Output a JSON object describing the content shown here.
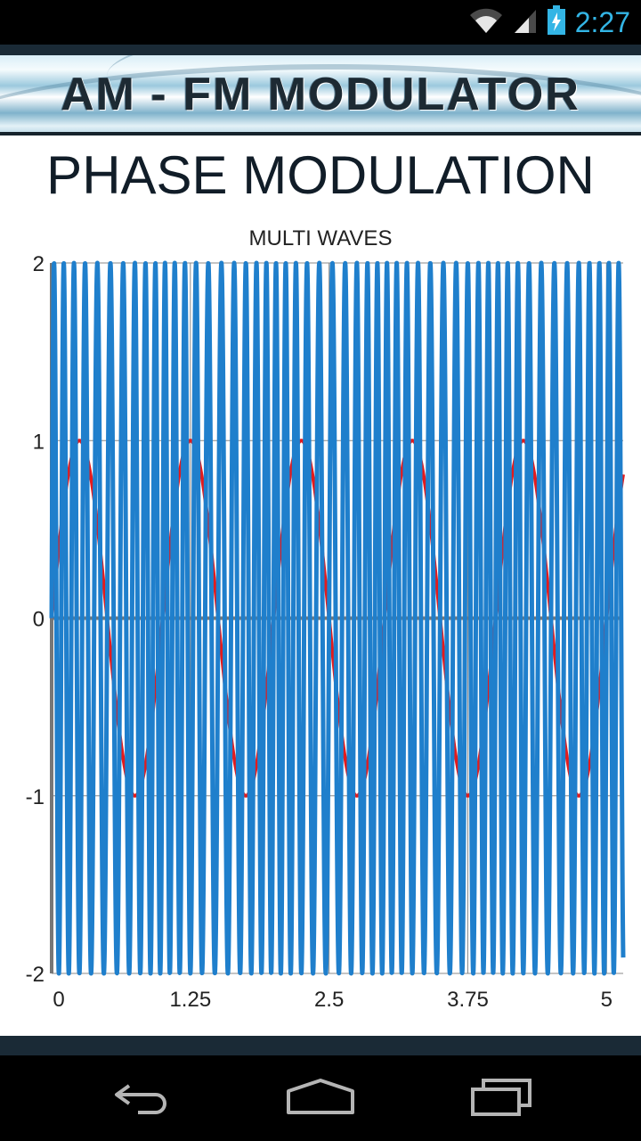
{
  "status_bar": {
    "time": "2:27",
    "icons": [
      "wifi-icon",
      "signal-icon",
      "battery-charging-icon"
    ]
  },
  "banner": {
    "title": "AM - FM MODULATOR"
  },
  "page": {
    "title": "PHASE MODULATION"
  },
  "chart_data": {
    "type": "line",
    "title": "MULTI WAVES",
    "xlabel": "",
    "ylabel": "",
    "xlim": [
      0,
      5.15
    ],
    "ylim": [
      -2,
      2
    ],
    "x_ticks": [
      "0",
      "1.25",
      "2.5",
      "3.75",
      "5"
    ],
    "x_tick_values": [
      0,
      1.25,
      2.5,
      3.75,
      5
    ],
    "y_ticks": [
      "2",
      "1",
      "0",
      "-1",
      "-2"
    ],
    "y_tick_values": [
      2,
      1,
      0,
      -1,
      -2
    ],
    "grid": true,
    "legend": "none",
    "series": [
      {
        "color": "#e31a1c",
        "function": "sin",
        "amplitude": 1,
        "frequency": 1,
        "x_range": [
          0,
          5.15
        ]
      },
      {
        "color": "#1f7fcc",
        "function": "sin",
        "amplitude": 2,
        "frequency": 10,
        "phase_modulation_index": 0.25,
        "x_range": [
          0,
          5.15
        ]
      }
    ]
  },
  "nav_bar": {
    "buttons": [
      "back-icon",
      "home-icon",
      "recents-icon"
    ]
  }
}
